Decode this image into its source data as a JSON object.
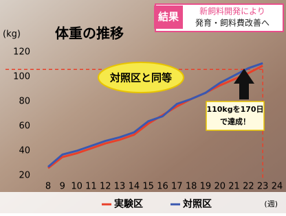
{
  "chart_data": {
    "type": "line",
    "title": "体重の推移",
    "y_label": "(kg)",
    "x_label": "(週)",
    "badge": "結果",
    "headline": [
      "新飼料開発により",
      "発育・飼料費改善へ"
    ],
    "callout": "対照区と同等",
    "note": [
      "110kgを170日",
      "で達成！"
    ],
    "x": [
      8,
      9,
      10,
      11,
      12,
      13,
      14,
      15,
      16,
      17,
      18,
      19,
      20,
      21,
      22,
      23
    ],
    "series": [
      {
        "name": "実験区",
        "color": "#e8402a",
        "values": [
          26,
          35,
          38,
          42,
          46,
          49,
          53,
          62,
          69,
          76,
          82,
          87,
          93,
          98,
          103,
          109
        ]
      },
      {
        "name": "対照区",
        "color": "#3a58b0",
        "values": [
          27,
          37,
          40,
          44,
          48,
          51,
          55,
          64,
          68,
          78,
          82,
          87,
          95,
          101,
          107,
          111
        ]
      }
    ],
    "xlim": [
      8,
      24
    ],
    "xticks": [
      8,
      9,
      10,
      11,
      12,
      13,
      14,
      15,
      16,
      17,
      18,
      19,
      20,
      21,
      22,
      23,
      24
    ],
    "ylim": [
      20,
      120
    ],
    "yticks": [
      20,
      40,
      60,
      80,
      100,
      120
    ],
    "reference_y": 106,
    "reference_x": 23,
    "reference_color": "#e8402a",
    "legend": "bottom"
  }
}
